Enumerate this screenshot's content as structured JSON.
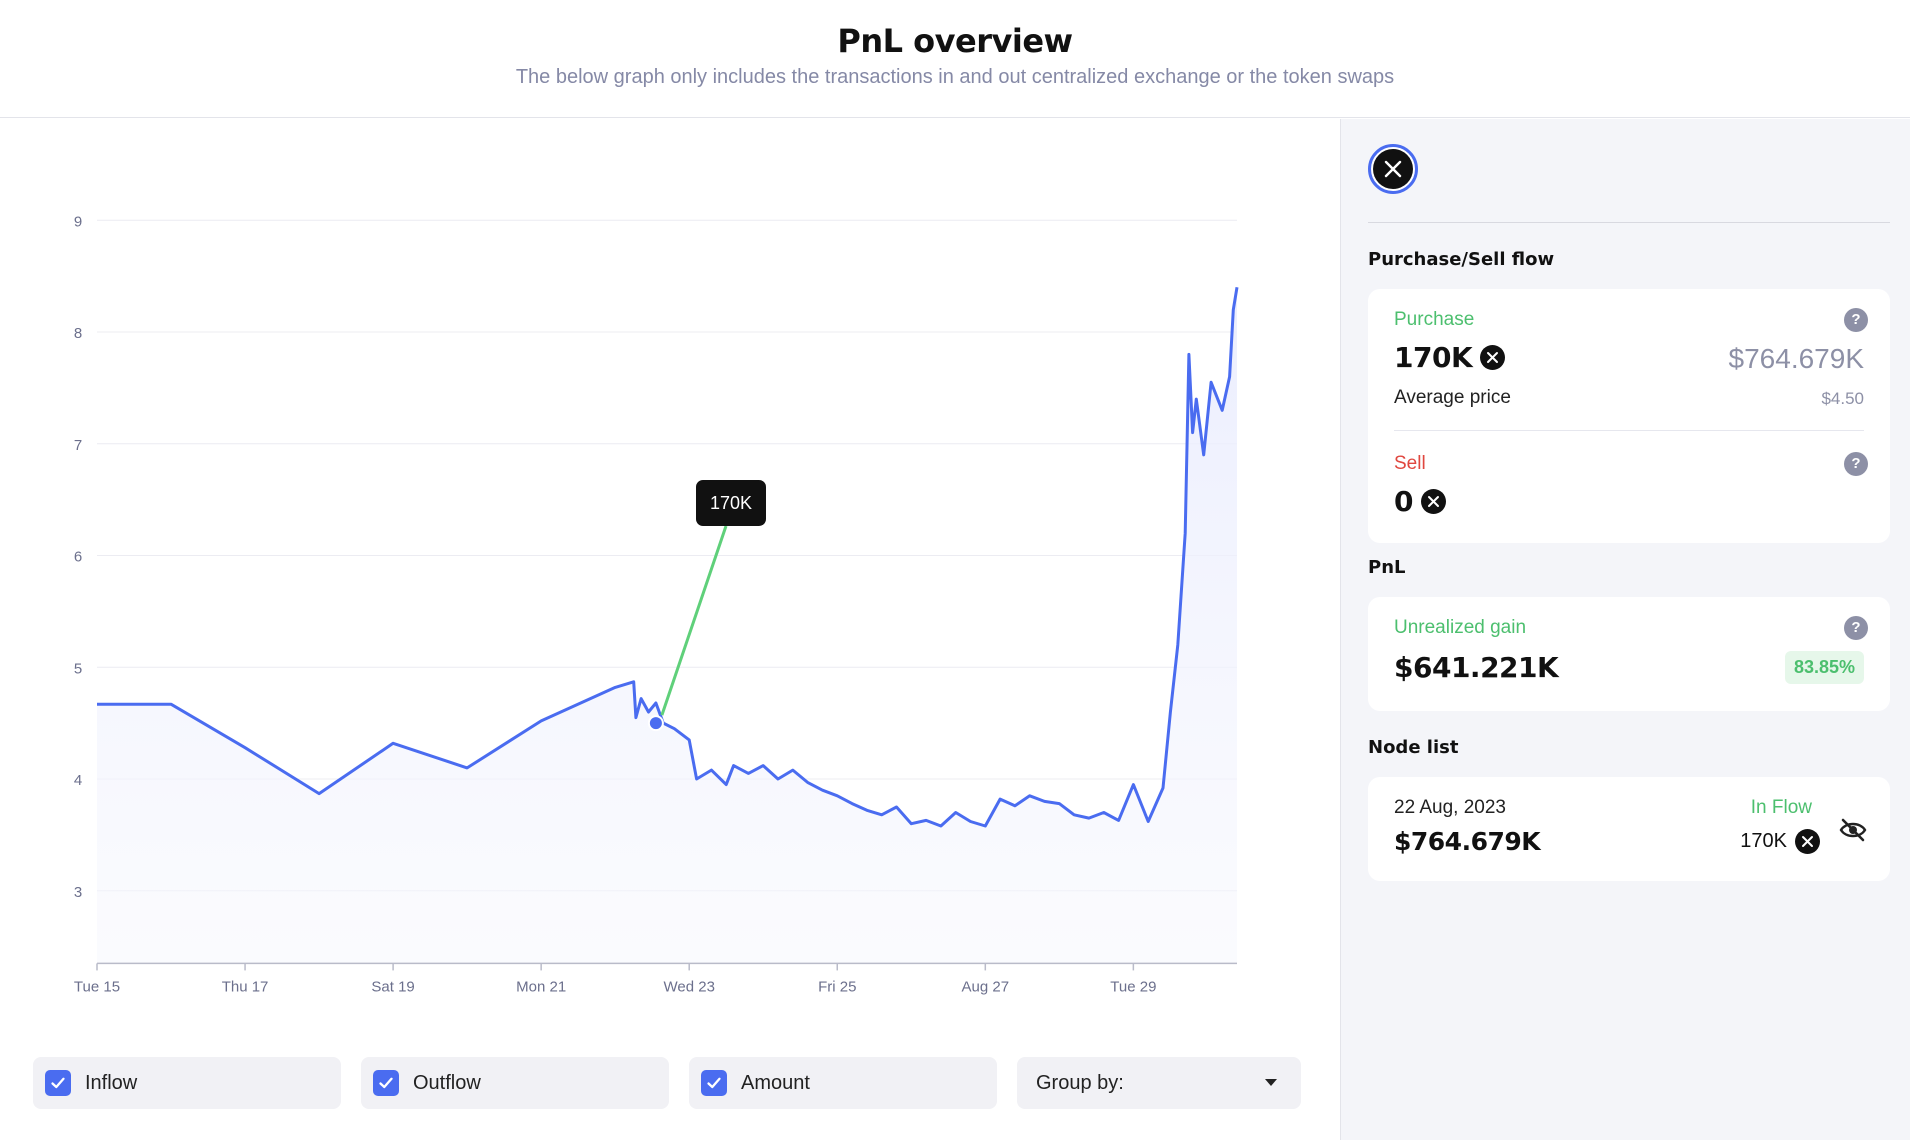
{
  "header": {
    "title": "PnL overview",
    "subtitle": "The below graph only includes the transactions in and out centralized exchange or the token swaps"
  },
  "chart_data": {
    "type": "area",
    "xlabel": "",
    "ylabel": "",
    "ylim": [
      2.35,
      9.0
    ],
    "yticks": [
      "9",
      "8",
      "7",
      "6",
      "5",
      "4",
      "3"
    ],
    "xticks": [
      "Tue 15",
      "Thu 17",
      "Sat 19",
      "Mon 21",
      "Wed 23",
      "Fri 25",
      "Aug 27",
      "Tue 29"
    ],
    "x_range_days": [
      15,
      30.4
    ],
    "series": [
      {
        "name": "",
        "points": [
          [
            15.0,
            4.67
          ],
          [
            16.0,
            4.67
          ],
          [
            17.0,
            4.28
          ],
          [
            18.0,
            3.87
          ],
          [
            19.0,
            4.32
          ],
          [
            20.0,
            4.1
          ],
          [
            21.0,
            4.52
          ],
          [
            22.0,
            4.82
          ],
          [
            22.25,
            4.87
          ],
          [
            22.28,
            4.55
          ],
          [
            22.35,
            4.72
          ],
          [
            22.45,
            4.6
          ],
          [
            22.55,
            4.68
          ],
          [
            22.65,
            4.5
          ],
          [
            22.8,
            4.45
          ],
          [
            23.0,
            4.35
          ],
          [
            23.1,
            4.0
          ],
          [
            23.3,
            4.08
          ],
          [
            23.5,
            3.95
          ],
          [
            23.6,
            4.12
          ],
          [
            23.8,
            4.05
          ],
          [
            24.0,
            4.12
          ],
          [
            24.2,
            4.0
          ],
          [
            24.4,
            4.08
          ],
          [
            24.6,
            3.97
          ],
          [
            24.8,
            3.9
          ],
          [
            25.0,
            3.85
          ],
          [
            25.2,
            3.78
          ],
          [
            25.4,
            3.72
          ],
          [
            25.6,
            3.68
          ],
          [
            25.8,
            3.75
          ],
          [
            26.0,
            3.6
          ],
          [
            26.2,
            3.63
          ],
          [
            26.4,
            3.58
          ],
          [
            26.6,
            3.7
          ],
          [
            26.8,
            3.62
          ],
          [
            27.0,
            3.58
          ],
          [
            27.2,
            3.82
          ],
          [
            27.4,
            3.76
          ],
          [
            27.6,
            3.85
          ],
          [
            27.8,
            3.8
          ],
          [
            28.0,
            3.78
          ],
          [
            28.2,
            3.68
          ],
          [
            28.4,
            3.65
          ],
          [
            28.6,
            3.7
          ],
          [
            28.8,
            3.63
          ],
          [
            29.0,
            3.95
          ],
          [
            29.2,
            3.62
          ],
          [
            29.4,
            3.92
          ],
          [
            29.5,
            4.6
          ],
          [
            29.6,
            5.2
          ],
          [
            29.7,
            6.2
          ],
          [
            29.75,
            7.8
          ],
          [
            29.8,
            7.1
          ],
          [
            29.85,
            7.4
          ],
          [
            29.95,
            6.9
          ],
          [
            30.05,
            7.55
          ],
          [
            30.2,
            7.3
          ],
          [
            30.3,
            7.6
          ],
          [
            30.35,
            8.2
          ],
          [
            30.4,
            8.4
          ]
        ]
      }
    ],
    "tooltip": {
      "label": "170K",
      "x": 22.55,
      "y": 4.5
    },
    "colors": {
      "line": "#4a6cf0",
      "area": "#eef0fd",
      "tooltip_line": "#5fd07a",
      "grid": "#ececf2"
    }
  },
  "controls": {
    "inflow": "Inflow",
    "outflow": "Outflow",
    "amount": "Amount",
    "group_by": "Group by:"
  },
  "sidebar": {
    "coin_icon": "x-icon",
    "purchase_sell_title": "Purchase/Sell flow",
    "purchase": {
      "label": "Purchase",
      "amount": "170K",
      "value": "$764.679K",
      "avg_label": "Average price",
      "avg_value": "$4.50"
    },
    "sell": {
      "label": "Sell",
      "amount": "0"
    },
    "pnl_title": "PnL",
    "pnl": {
      "label": "Unrealized gain",
      "value": "$641.221K",
      "percent": "83.85%"
    },
    "node_title": "Node list",
    "node": {
      "date": "22 Aug, 2023",
      "flow": "In Flow",
      "value": "$764.679K",
      "amount": "170K"
    },
    "help_glyph": "?"
  }
}
